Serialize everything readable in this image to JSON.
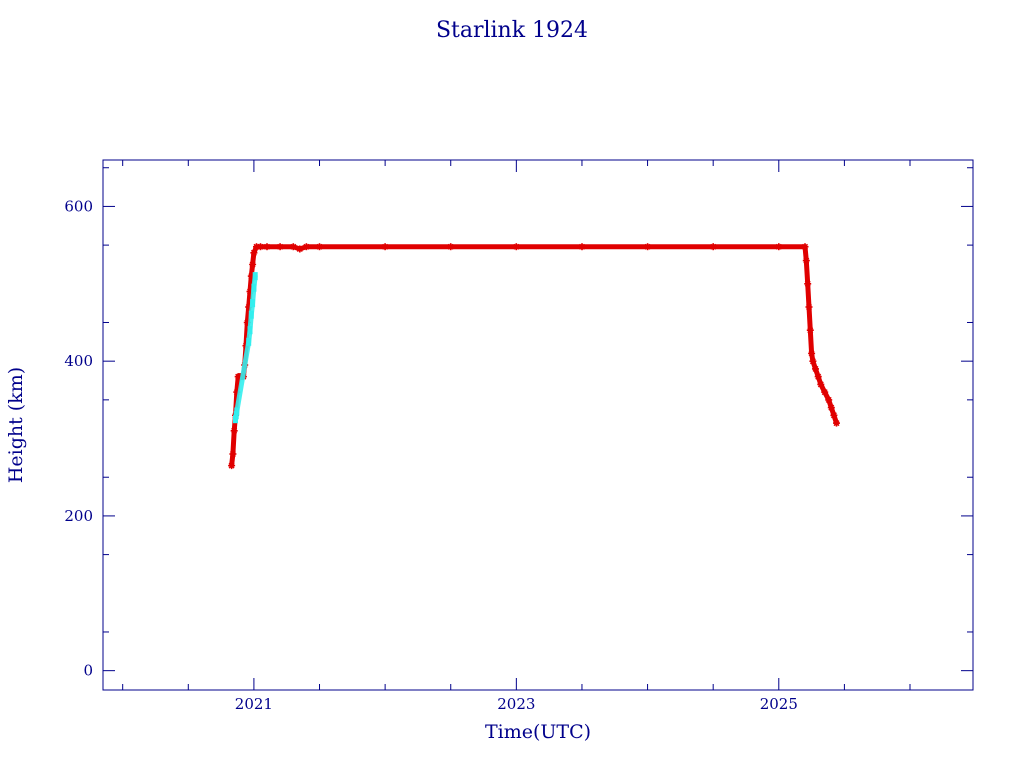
{
  "chart_data": {
    "type": "scatter",
    "title": "Starlink 1924",
    "xlabel": "Time(UTC)",
    "ylabel": "Height (km)",
    "xlim": [
      2019.85,
      2026.48
    ],
    "ylim": [
      -25,
      660
    ],
    "x_ticks": [
      2021,
      2023,
      2025
    ],
    "y_ticks": [
      0,
      200,
      400,
      600
    ],
    "grid": false,
    "colors": {
      "axis": "#00008b",
      "series_main": "#e00000",
      "series_alt": "#33eeee"
    },
    "series": [
      {
        "color": "#e00000",
        "marker": "asterisk",
        "x": [
          2020.83,
          2020.84,
          2020.85,
          2020.86,
          2020.87,
          2020.88,
          2020.89,
          2020.9,
          2020.91,
          2020.92,
          2020.93,
          2020.94,
          2020.95,
          2020.96,
          2020.97,
          2020.98,
          2020.99,
          2021.0,
          2021.02,
          2021.05,
          2021.1,
          2021.2,
          2021.3,
          2021.35,
          2021.4,
          2021.5,
          2022.0,
          2022.5,
          2023.0,
          2023.5,
          2024.0,
          2024.5,
          2025.0,
          2025.2,
          2025.21,
          2025.22,
          2025.23,
          2025.24,
          2025.25,
          2025.26,
          2025.28,
          2025.3,
          2025.32,
          2025.35,
          2025.38,
          2025.4,
          2025.42,
          2025.44
        ],
        "y": [
          265,
          280,
          310,
          330,
          360,
          380,
          380,
          380,
          380,
          380,
          395,
          420,
          450,
          470,
          490,
          510,
          525,
          540,
          548,
          548,
          548,
          548,
          548,
          545,
          548,
          548,
          548,
          548,
          548,
          548,
          548,
          548,
          548,
          548,
          530,
          500,
          470,
          440,
          410,
          400,
          390,
          380,
          370,
          360,
          350,
          340,
          330,
          320
        ]
      },
      {
        "color": "#33eeee",
        "marker": "segment",
        "x": [
          2020.86,
          2020.865,
          2020.87,
          2020.96,
          2020.97,
          2020.98,
          2020.99,
          2021.0,
          2021.01
        ],
        "y": [
          325,
          330,
          335,
          425,
          440,
          460,
          475,
          495,
          510
        ]
      }
    ]
  }
}
